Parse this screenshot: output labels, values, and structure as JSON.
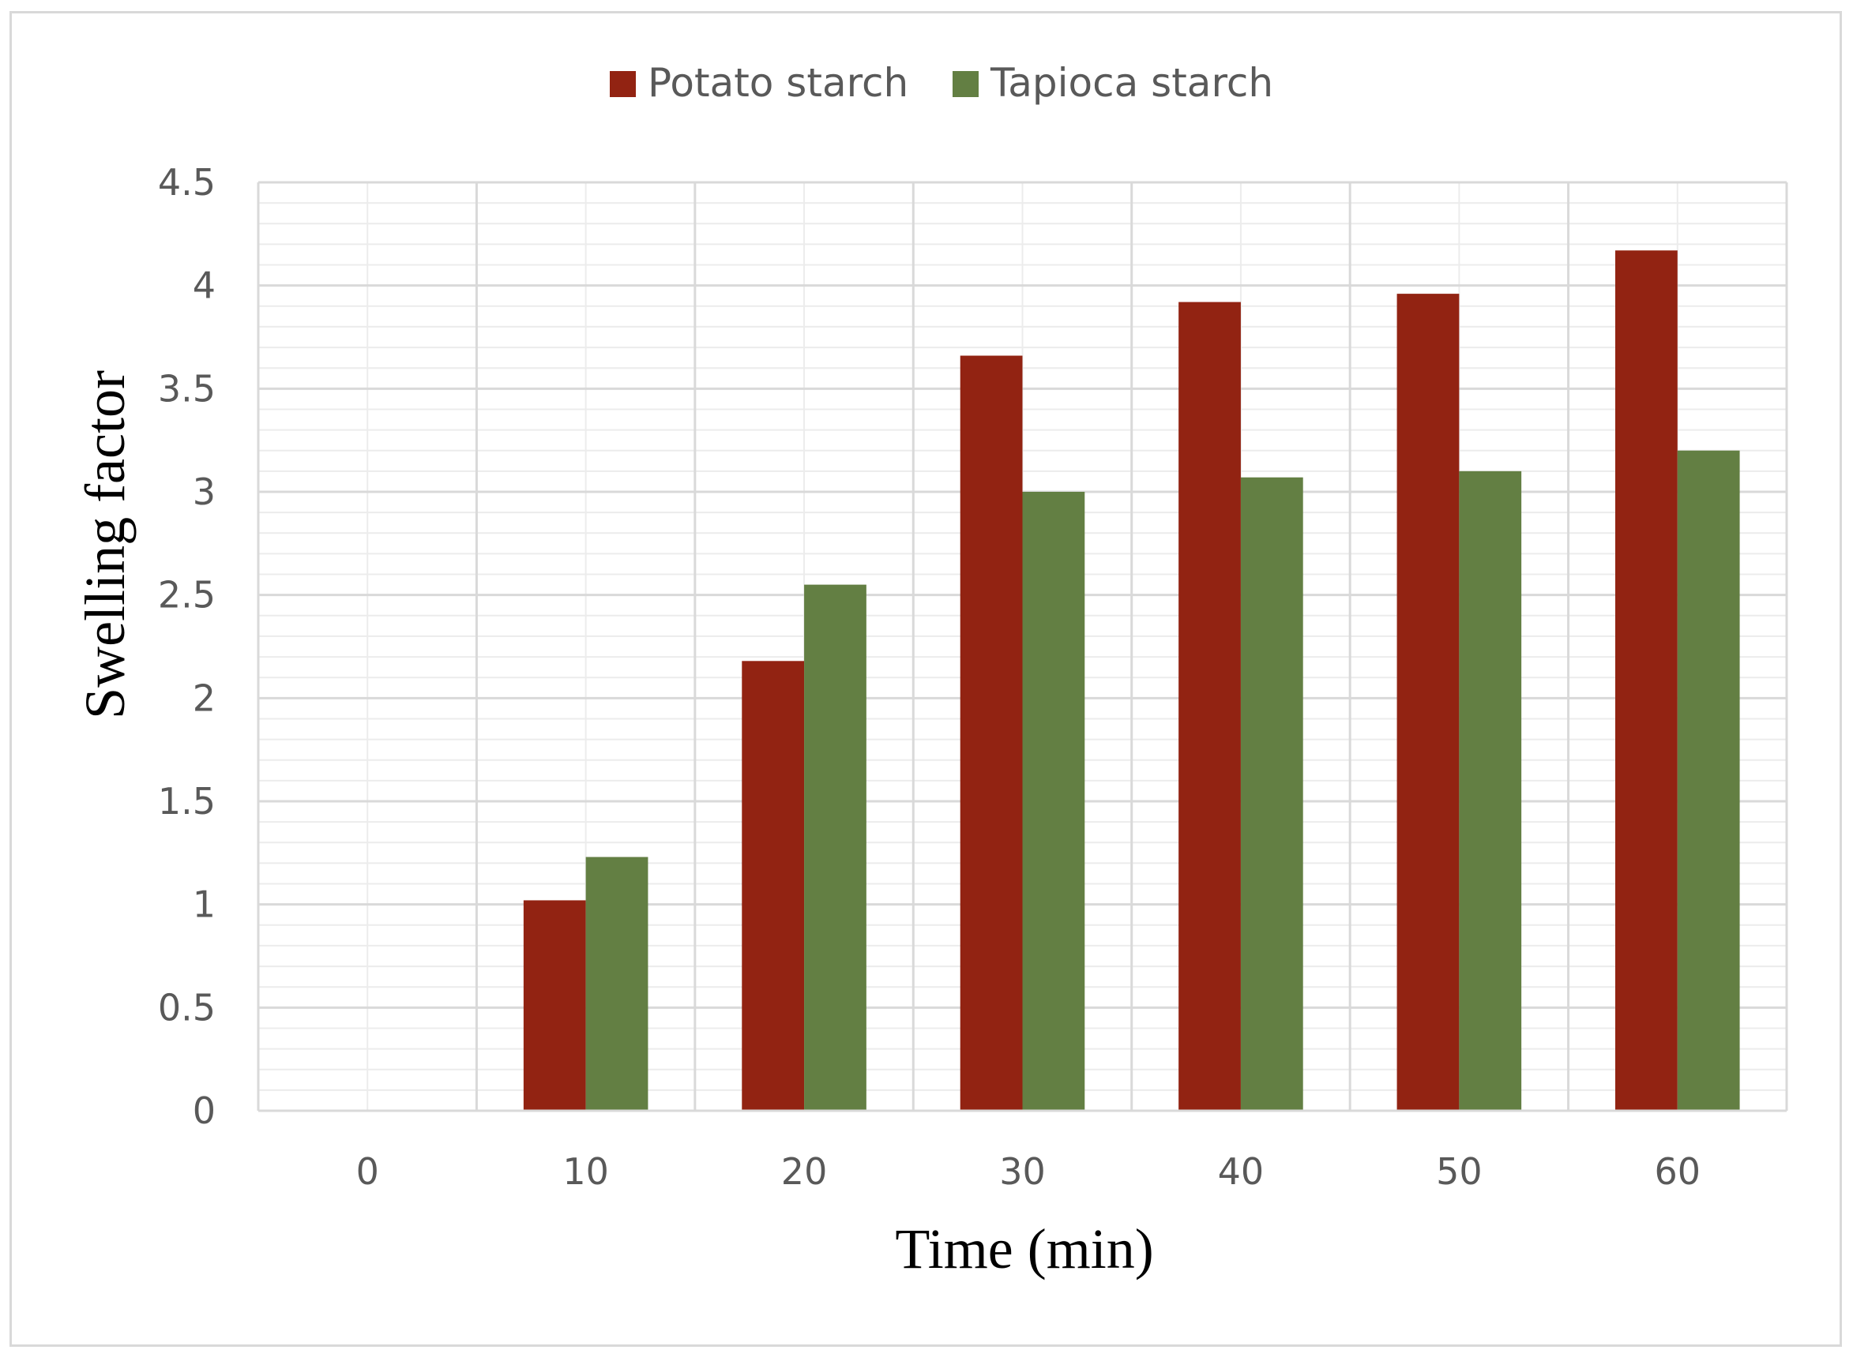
{
  "chart_data": {
    "type": "bar",
    "title": "",
    "xlabel": "Time (min)",
    "ylabel": "Swelling factor",
    "categories": [
      "0",
      "10",
      "20",
      "30",
      "40",
      "50",
      "60"
    ],
    "series": [
      {
        "name": "Potato starch",
        "color": "#922312",
        "values": [
          0,
          1.02,
          2.18,
          3.66,
          3.92,
          3.96,
          4.17
        ]
      },
      {
        "name": "Tapioca starch",
        "color": "#637F43",
        "values": [
          0,
          1.23,
          2.55,
          3.0,
          3.07,
          3.1,
          3.2
        ]
      }
    ],
    "ylim": [
      0,
      4.5
    ],
    "yticks": [
      "0",
      "0.5",
      "1",
      "1.5",
      "2",
      "2.5",
      "3",
      "3.5",
      "4",
      "4.5"
    ],
    "grid": true,
    "legend_position": "top-center"
  }
}
